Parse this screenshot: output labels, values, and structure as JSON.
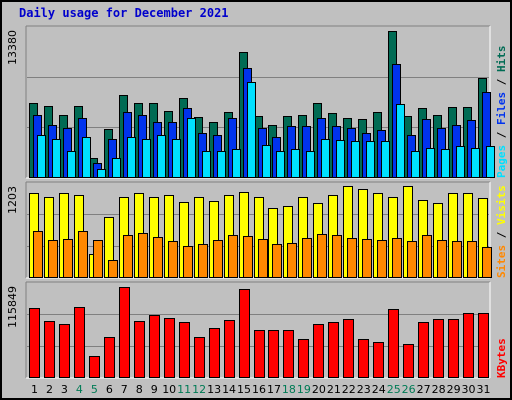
{
  "title": "Daily usage for December 2021",
  "colors": {
    "background": "#c0c0c0",
    "hits": "#006b54",
    "files": "#0033ee",
    "pages": "#00e0ff",
    "visits": "#ffff00",
    "sites": "#ff8800",
    "kbytes": "#ff0000",
    "weekday_label": "#000000",
    "weekend_label": "#007b55",
    "title": "#0000cc"
  },
  "chart_data": [
    {
      "type": "bar",
      "panel": "hits-files-pages",
      "ymax_label": "13380",
      "ylim": [
        0,
        13380
      ],
      "grid": true,
      "legend": {
        "placement": "right-vertical",
        "items": [
          "Pages",
          "Files",
          "Hits"
        ],
        "separator": " / "
      },
      "x": [
        1,
        2,
        3,
        4,
        5,
        6,
        7,
        8,
        9,
        10,
        11,
        12,
        13,
        14,
        15,
        16,
        17,
        18,
        19,
        20,
        21,
        22,
        23,
        24,
        25,
        26,
        27,
        28,
        29,
        30,
        31
      ],
      "series": [
        {
          "name": "Hits",
          "values": [
            6800,
            6500,
            5700,
            6500,
            1800,
            4400,
            7500,
            6800,
            6800,
            6100,
            7200,
            5500,
            5100,
            6000,
            11400,
            5600,
            4800,
            5600,
            5700,
            6800,
            5900,
            5400,
            5300,
            6000,
            13300,
            5600,
            6300,
            5700,
            6400,
            6400,
            9000
          ]
        },
        {
          "name": "Files",
          "values": [
            5700,
            4800,
            4500,
            5400,
            1400,
            3500,
            6000,
            5700,
            5100,
            5100,
            6300,
            4100,
            3900,
            5400,
            9900,
            4500,
            3700,
            4700,
            4700,
            5400,
            4700,
            4500,
            4100,
            4300,
            10300,
            3900,
            5300,
            4500,
            4800,
            5200,
            7800
          ]
        },
        {
          "name": "Pages",
          "values": [
            3900,
            3500,
            2400,
            3700,
            800,
            1800,
            3700,
            3500,
            3900,
            3500,
            5400,
            2400,
            2400,
            2600,
            8700,
            3000,
            2400,
            2600,
            2400,
            3500,
            3400,
            3300,
            3300,
            3300,
            6700,
            2400,
            2700,
            2600,
            2900,
            2700,
            2900
          ]
        }
      ]
    },
    {
      "type": "bar",
      "panel": "visits-sites",
      "ymax_label": "1203",
      "ylim": [
        0,
        1203
      ],
      "grid": true,
      "legend": {
        "placement": "right-vertical",
        "items": [
          "Sites",
          "Visits"
        ],
        "separator": " / "
      },
      "x": [
        1,
        2,
        3,
        4,
        5,
        6,
        7,
        8,
        9,
        10,
        11,
        12,
        13,
        14,
        15,
        16,
        17,
        18,
        19,
        20,
        21,
        22,
        23,
        24,
        25,
        26,
        27,
        28,
        29,
        30,
        31
      ],
      "series": [
        {
          "name": "Visits",
          "values": [
            1110,
            1060,
            1110,
            1080,
            320,
            800,
            1060,
            1110,
            1060,
            1080,
            1000,
            1060,
            1010,
            1080,
            1130,
            1060,
            920,
            940,
            1060,
            980,
            1080,
            1200,
            1160,
            1110,
            1060,
            1200,
            1020,
            980,
            1110,
            1110,
            1050
          ]
        },
        {
          "name": "Sites",
          "values": [
            610,
            500,
            510,
            620,
            500,
            230,
            560,
            590,
            540,
            480,
            420,
            450,
            500,
            560,
            550,
            510,
            450,
            460,
            520,
            580,
            560,
            520,
            510,
            500,
            520,
            490,
            560,
            500,
            490,
            490,
            400
          ]
        }
      ]
    },
    {
      "type": "bar",
      "panel": "kbytes",
      "ymax_label": "115849",
      "ylim": [
        0,
        115849
      ],
      "grid": true,
      "legend": {
        "placement": "right-vertical",
        "items": [
          "KBytes"
        ],
        "separator": ""
      },
      "x": [
        1,
        2,
        3,
        4,
        5,
        6,
        7,
        8,
        9,
        10,
        11,
        12,
        13,
        14,
        15,
        16,
        17,
        18,
        19,
        20,
        21,
        22,
        23,
        24,
        25,
        26,
        27,
        28,
        29,
        30,
        31
      ],
      "series": [
        {
          "name": "KBytes",
          "values": [
            88000,
            72000,
            68000,
            90000,
            28000,
            52000,
            115000,
            72000,
            79000,
            76000,
            71000,
            51000,
            63000,
            73000,
            112000,
            60000,
            60000,
            60000,
            49000,
            68000,
            70000,
            74000,
            49000,
            45000,
            87000,
            43000,
            71000,
            74000,
            74000,
            82000,
            82000
          ]
        }
      ]
    }
  ],
  "days": [
    "1",
    "2",
    "3",
    "4",
    "5",
    "6",
    "7",
    "8",
    "9",
    "10",
    "11",
    "12",
    "13",
    "14",
    "15",
    "16",
    "17",
    "18",
    "19",
    "20",
    "21",
    "22",
    "23",
    "24",
    "25",
    "26",
    "27",
    "28",
    "29",
    "30",
    "31"
  ],
  "weekend_days": [
    4,
    5,
    11,
    12,
    18,
    19,
    25,
    26
  ]
}
